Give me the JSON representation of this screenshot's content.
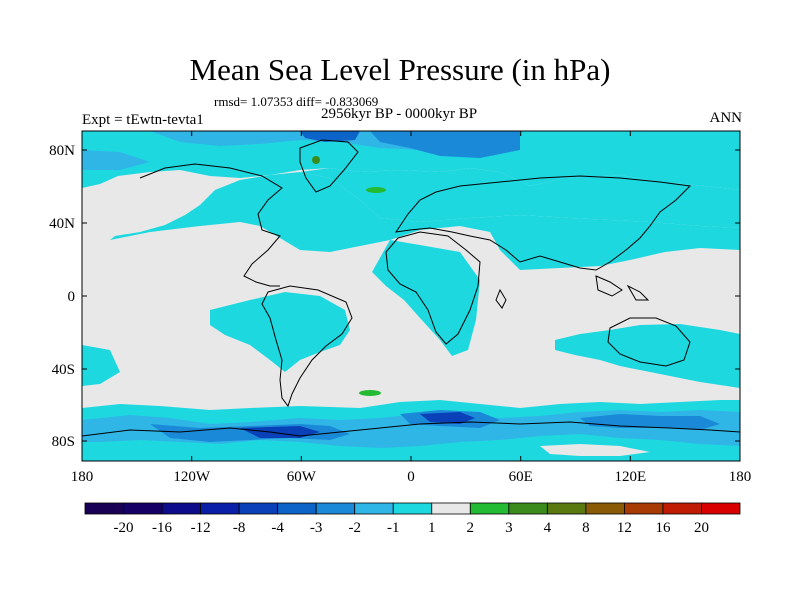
{
  "header": {
    "title": "Mean Sea Level Pressure (in hPa)",
    "stats": "rmsd= 1.07353 diff= -0.833069",
    "period": "2956kyr BP - 0000kyr BP",
    "experiment": "Expt = tEwtn-tevta1",
    "season": "ANN"
  },
  "axes": {
    "lat_labels": [
      "80N",
      "40N",
      "0",
      "40S",
      "80S"
    ],
    "lon_labels": [
      "180",
      "120W",
      "60W",
      "0",
      "60E",
      "120E",
      "180"
    ]
  },
  "colorbar": {
    "labels": [
      "-20",
      "-16",
      "-12",
      "-8",
      "-4",
      "-3",
      "-2",
      "-1",
      "1",
      "2",
      "3",
      "4",
      "8",
      "12",
      "16",
      "20"
    ],
    "colors": [
      "#150066",
      "#0c0c8c",
      "#0a1fa8",
      "#0a40b8",
      "#0c63c8",
      "#1a8ad8",
      "#2fb6e6",
      "#1ed8e0",
      "#e8e8e8",
      "#22bb33",
      "#3a8a1c",
      "#5a7a10",
      "#8a5a06",
      "#a83a04",
      "#c01c04",
      "#d80000"
    ]
  },
  "map_colors": {
    "background": "#e8e8e8",
    "weak_negative": "#1ed8e0",
    "moderate_negative": "#2fb6e6",
    "strong_negative": "#1a8ad8",
    "very_strong_negative": "#0a40b8",
    "weak_positive": "#22bb33",
    "coast": "#000000"
  }
}
